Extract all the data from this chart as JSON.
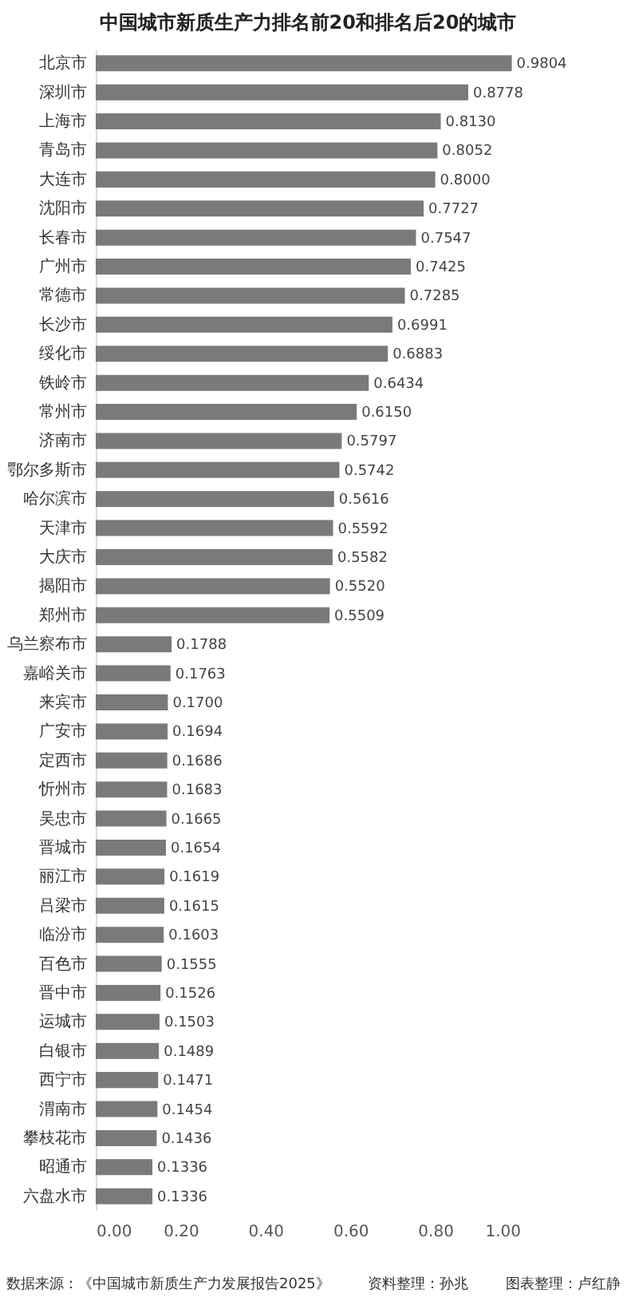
{
  "chart_data": {
    "type": "bar",
    "orientation": "horizontal",
    "title": "中国城市新质生产力排名前20和排名后20的城市",
    "categories": [
      "北京市",
      "深圳市",
      "上海市",
      "青岛市",
      "大连市",
      "沈阳市",
      "长春市",
      "广州市",
      "常德市",
      "长沙市",
      "绥化市",
      "铁岭市",
      "常州市",
      "济南市",
      "鄂尔多斯市",
      "哈尔滨市",
      "天津市",
      "大庆市",
      "揭阳市",
      "郑州市",
      "乌兰察布市",
      "嘉峪关市",
      "来宾市",
      "广安市",
      "定西市",
      "忻州市",
      "吴忠市",
      "晋城市",
      "丽江市",
      "吕梁市",
      "临汾市",
      "百色市",
      "晋中市",
      "运城市",
      "白银市",
      "西宁市",
      "渭南市",
      "攀枝花市",
      "昭通市",
      "六盘水市"
    ],
    "values": [
      0.9804,
      0.8778,
      0.813,
      0.8052,
      0.8,
      0.7727,
      0.7547,
      0.7425,
      0.7285,
      0.6991,
      0.6883,
      0.6434,
      0.615,
      0.5797,
      0.5742,
      0.5616,
      0.5592,
      0.5582,
      0.552,
      0.5509,
      0.1788,
      0.1763,
      0.17,
      0.1694,
      0.1686,
      0.1683,
      0.1665,
      0.1654,
      0.1619,
      0.1615,
      0.1603,
      0.1555,
      0.1526,
      0.1503,
      0.1489,
      0.1471,
      0.1454,
      0.1436,
      0.1336,
      0.1336
    ],
    "value_labels": [
      "0.9804",
      "0.8778",
      "0.8130",
      "0.8052",
      "0.8000",
      "0.7727",
      "0.7547",
      "0.7425",
      "0.7285",
      "0.6991",
      "0.6883",
      "0.6434",
      "0.6150",
      "0.5797",
      "0.5742",
      "0.5616",
      "0.5592",
      "0.5582",
      "0.5520",
      "0.5509",
      "0.1788",
      "0.1763",
      "0.1700",
      "0.1694",
      "0.1686",
      "0.1683",
      "0.1665",
      "0.1654",
      "0.1619",
      "0.1615",
      "0.1603",
      "0.1555",
      "0.1526",
      "0.1503",
      "0.1489",
      "0.1471",
      "0.1454",
      "0.1436",
      "0.1336",
      "0.1336"
    ],
    "color": "#7a7a7a",
    "xlim": [
      0,
      1
    ],
    "xticks": [
      {
        "value": 0,
        "label": "0.00"
      },
      {
        "value": 0.2,
        "label": "0.20"
      },
      {
        "value": 0.4,
        "label": "0.40"
      },
      {
        "value": 0.6,
        "label": "0.60"
      },
      {
        "value": 0.8,
        "label": "0.80"
      },
      {
        "value": 1,
        "label": "1.00"
      }
    ],
    "grid": false,
    "annotations": [
      "数据来源：《中国城市新质生产力发展报告2025》",
      "资料整理：孙兆",
      "图表整理：卢红静"
    ]
  }
}
